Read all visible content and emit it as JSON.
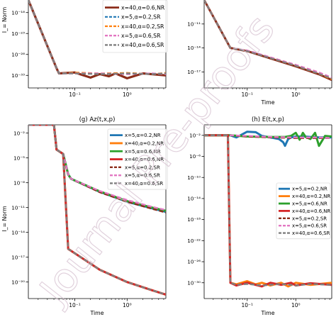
{
  "watermark": "Journal Pre-proofs",
  "colors": {
    "c_red": "#d62728",
    "c_darkred": "#8c2d1a",
    "c_pink": "#e377c2",
    "c_blue": "#1f77b4",
    "c_orange": "#ff7f0e",
    "c_green": "#2ca02c",
    "c_brown": "#8c564b",
    "c_gray": "#7f7f7f",
    "watermark": "#d8c3d2"
  },
  "chart_data": [
    {
      "panel": "e",
      "type": "line",
      "title": "",
      "xlabel": "",
      "ylabel": "I_= Norm",
      "xscale": "log",
      "yscale": "log",
      "xlim": [
        0.013,
        5.5
      ],
      "ylim": [
        1e-36,
        1e-15
      ],
      "xticks": [
        {
          "v": 0.1,
          "label": "10⁻¹"
        },
        {
          "v": 1,
          "label": "10⁰"
        }
      ],
      "yticks": [
        {
          "v": 1e-18,
          "label": "10⁻¹⁸"
        },
        {
          "v": 1e-23,
          "label": "10⁻²³"
        },
        {
          "v": 1e-28,
          "label": "10⁻²⁸"
        },
        {
          "v": 1e-33,
          "label": "10⁻³³"
        }
      ],
      "legend_position": "upper-right",
      "series": [
        {
          "name": "x=40,α=0.6,NR",
          "color": "c_darkred",
          "dash": "solid",
          "width": 3.2,
          "x": [
            0.013,
            0.045,
            0.05,
            0.1,
            0.2,
            0.3,
            0.45,
            0.6,
            1,
            2,
            5.5
          ],
          "y": [
            1e-15,
            5e-32,
            3e-33,
            5e-33,
            3e-34,
            2e-33,
            6e-34,
            3e-33,
            2e-34,
            3e-33,
            1e-33
          ]
        },
        {
          "name": "x=5,α=0.2,SR",
          "color": "c_blue",
          "dash": "dashed",
          "width": 2.2,
          "x": [
            0.013,
            0.045,
            0.05,
            0.1,
            0.3,
            1,
            3,
            5.5
          ],
          "y": [
            1e-15,
            5e-32,
            3e-33,
            4e-33,
            2e-33,
            3e-33,
            2e-33,
            3e-33
          ]
        },
        {
          "name": "x=40,α=0.2,SR",
          "color": "c_orange",
          "dash": "dashed",
          "width": 2.2,
          "x": [
            0.013,
            0.045,
            0.05,
            0.1,
            0.3,
            1,
            3,
            5.5
          ],
          "y": [
            1e-15,
            5e-32,
            3e-33,
            5e-33,
            3e-33,
            4e-33,
            2e-33,
            4e-33
          ]
        },
        {
          "name": "x=5,α=0.6,SR",
          "color": "c_pink",
          "dash": "dashed",
          "width": 2.4,
          "x": [
            0.013,
            0.045,
            0.05,
            0.1,
            0.3,
            1,
            3,
            5.5
          ],
          "y": [
            1e-15,
            5e-32,
            3e-33,
            3e-33,
            3e-33,
            2e-33,
            3e-33,
            2e-33
          ]
        },
        {
          "name": "x=40,α=0.6,SR",
          "color": "c_gray",
          "dash": "dashed",
          "width": 2.4,
          "x": [
            0.013,
            0.045,
            0.05,
            0.1,
            0.3,
            1,
            3,
            5.5
          ],
          "y": [
            1e-15,
            5e-32,
            3e-33,
            3e-33,
            2e-33,
            3e-33,
            2e-33,
            3e-33
          ]
        }
      ]
    },
    {
      "panel": "f",
      "type": "line",
      "title": "",
      "xlabel": "Time",
      "ylabel": "",
      "xscale": "log",
      "yscale": "log",
      "xlim": [
        0.013,
        5.5
      ],
      "ylim": [
        1e-19,
        1e-08
      ],
      "xticks": [
        {
          "v": 0.1,
          "label": "10⁻¹"
        },
        {
          "v": 1,
          "label": "10⁰"
        }
      ],
      "yticks": [
        {
          "v": 1e-11,
          "label": "10⁻¹¹"
        },
        {
          "v": 1e-14,
          "label": "10⁻¹⁴"
        },
        {
          "v": 1e-17,
          "label": "10⁻¹⁷"
        }
      ],
      "legend_position": "none",
      "series": [
        {
          "name": "",
          "color": "c_darkred",
          "dash": "solid",
          "width": 3,
          "x": [
            0.013,
            0.045,
            0.1,
            0.3,
            1,
            3,
            5.5
          ],
          "y": [
            1e-08,
            1e-14,
            4e-15,
            5e-16,
            5e-17,
            5e-18,
            1e-18
          ]
        },
        {
          "name": "",
          "color": "c_orange",
          "dash": "dashed",
          "width": 2.2,
          "x": [
            0.013,
            0.045,
            0.1,
            0.3,
            1,
            3,
            5.5
          ],
          "y": [
            1e-08,
            1e-14,
            4.5e-15,
            6e-16,
            6e-17,
            6e-18,
            1.2e-18
          ]
        },
        {
          "name": "",
          "color": "c_pink",
          "dash": "dashed",
          "width": 2.2,
          "x": [
            0.013,
            0.045,
            0.1,
            0.3,
            1,
            3,
            5.5
          ],
          "y": [
            1e-08,
            1e-14,
            5e-15,
            7e-16,
            8e-17,
            9e-18,
            2e-18
          ]
        },
        {
          "name": "",
          "color": "c_gray",
          "dash": "dashed",
          "width": 2.2,
          "x": [
            0.013,
            0.045,
            0.1,
            0.3,
            1,
            3,
            5.5
          ],
          "y": [
            1e-08,
            1e-14,
            4e-15,
            5.5e-16,
            6e-17,
            6e-18,
            1.5e-18
          ]
        }
      ]
    },
    {
      "panel": "g",
      "type": "line",
      "title": "(g) Az(t,x,p)",
      "xlabel": "Time",
      "ylabel": "I_= Norm",
      "xscale": "log",
      "yscale": "log",
      "xlim": [
        0.013,
        5.5
      ],
      "ylim": [
        1e-22,
        0.1
      ],
      "xticks": [
        {
          "v": 0.1,
          "label": "10⁻¹"
        },
        {
          "v": 1,
          "label": "10⁰"
        }
      ],
      "yticks": [
        {
          "v": 0.01,
          "label": "10⁻²"
        },
        {
          "v": 1e-05,
          "label": "10⁻⁵"
        },
        {
          "v": 1e-08,
          "label": "10⁻⁸"
        },
        {
          "v": 1e-11,
          "label": "10⁻¹¹"
        },
        {
          "v": 1e-14,
          "label": "10⁻¹⁴"
        },
        {
          "v": 1e-17,
          "label": "10⁻¹⁷"
        },
        {
          "v": 1e-20,
          "label": "10⁻²⁰"
        }
      ],
      "legend_position": "upper-right",
      "series": [
        {
          "name": "x=5,α=0.2,NR",
          "color": "c_blue",
          "dash": "solid",
          "width": 3,
          "x": [
            0.013,
            0.04,
            0.045,
            0.06,
            0.075,
            0.085,
            0.3,
            1,
            3,
            5.5
          ],
          "y": [
            0.1,
            0.1,
            0.0001,
            3e-05,
            1e-07,
            3e-08,
            8e-10,
            5e-11,
            8e-12,
            3e-12
          ]
        },
        {
          "name": "x=40,α=0.2,NR",
          "color": "c_orange",
          "dash": "solid",
          "width": 3,
          "x": [
            0.013,
            0.04,
            0.045,
            0.06,
            0.075,
            0.085,
            0.3,
            1,
            3,
            5.5
          ],
          "y": [
            0.1,
            0.1,
            0.0001,
            3e-05,
            1e-16,
            6e-17,
            3e-19,
            1e-20,
            1e-21,
            3e-22
          ]
        },
        {
          "name": "x=5,α=0.6,NR",
          "color": "c_green",
          "dash": "solid",
          "width": 3,
          "x": [
            0.013,
            0.04,
            0.045,
            0.06,
            0.075,
            0.085,
            0.3,
            1,
            3,
            5.5
          ],
          "y": [
            0.1,
            0.1,
            0.0001,
            3e-05,
            1e-07,
            3e-08,
            9e-10,
            6e-11,
            1e-11,
            4e-12
          ]
        },
        {
          "name": "x=40,α=0.6,NR",
          "color": "c_red",
          "dash": "solid",
          "width": 3,
          "x": [
            0.013,
            0.04,
            0.045,
            0.06,
            0.075,
            0.085,
            0.3,
            1,
            3,
            5.5
          ],
          "y": [
            0.1,
            0.1,
            0.0001,
            3e-05,
            1e-16,
            6e-17,
            3e-19,
            1e-20,
            1e-21,
            3e-22
          ]
        },
        {
          "name": "x=5,α=0.2,SR",
          "color": "c_darkred",
          "dash": "dashed",
          "width": 2.4,
          "x": [
            0.013,
            0.04,
            0.045,
            0.06,
            0.075,
            0.085,
            0.3,
            1,
            3,
            5.5
          ],
          "y": [
            0.1,
            0.1,
            0.0001,
            3e-05,
            1e-07,
            3e-08,
            7e-10,
            5e-11,
            7e-12,
            2.5e-12
          ]
        },
        {
          "name": "x=5,α=0.6,SR",
          "color": "c_pink",
          "dash": "dashed",
          "width": 2.4,
          "x": [
            0.013,
            0.04,
            0.045,
            0.06,
            0.075,
            0.085,
            0.3,
            1,
            3,
            5.5
          ],
          "y": [
            0.1,
            0.1,
            0.0001,
            3e-05,
            1e-07,
            3e-08,
            1e-09,
            8e-11,
            1.2e-11,
            5e-12
          ]
        },
        {
          "name": "x=40,α=0.6,SR",
          "color": "c_gray",
          "dash": "dashed",
          "width": 2.4,
          "x": [
            0.013,
            0.04,
            0.045,
            0.06,
            0.075,
            0.085,
            0.3,
            1,
            3,
            5.5
          ],
          "y": [
            0.1,
            0.1,
            0.0001,
            3e-05,
            1e-16,
            6e-17,
            3e-19,
            1e-20,
            1e-21,
            3e-22
          ]
        }
      ]
    },
    {
      "panel": "h",
      "type": "line",
      "title": "(h) E(t,x,p)",
      "xlabel": "Time",
      "ylabel": "",
      "xscale": "log",
      "yscale": "log",
      "xlim": [
        0.013,
        5.5
      ],
      "ylim": [
        1e-33,
        1
      ],
      "xticks": [
        {
          "v": 0.1,
          "label": "10⁻¹"
        },
        {
          "v": 1,
          "label": "10⁰"
        }
      ],
      "yticks": [
        {
          "v": 0.01,
          "label": "10⁻²"
        },
        {
          "v": 1e-06,
          "label": "10⁻⁶"
        },
        {
          "v": 1e-10,
          "label": "10⁻¹⁰"
        },
        {
          "v": 1e-14,
          "label": "10⁻¹⁴"
        },
        {
          "v": 1e-18,
          "label": "10⁻¹⁸"
        },
        {
          "v": 1e-22,
          "label": "10⁻²²"
        },
        {
          "v": 1e-26,
          "label": "10⁻²⁶"
        },
        {
          "v": 1e-30,
          "label": "10⁻³⁰"
        }
      ],
      "legend_position": "center-right",
      "series": [
        {
          "name": "x=5,α=0.2,NR",
          "color": "c_blue",
          "dash": "solid",
          "width": 3,
          "x": [
            0.013,
            0.045,
            0.06,
            0.1,
            0.15,
            0.2,
            0.3,
            0.45,
            0.55,
            0.6,
            0.65,
            0.7,
            0.8,
            1,
            1.5,
            2,
            3,
            5.5
          ],
          "y": [
            0.01,
            0.01,
            0.004,
            0.05,
            0.04,
            0.008,
            0.004,
            0.002,
            0.0005,
            0.0001,
            0.0005,
            0.002,
            0.004,
            0.006,
            0.006,
            0.005,
            0.004,
            0.004
          ]
        },
        {
          "name": "x=40,α=0.2,NR",
          "color": "c_orange",
          "dash": "solid",
          "width": 3,
          "x": [
            0.013,
            0.04,
            0.045,
            0.06,
            0.1,
            0.15,
            0.2,
            0.3,
            0.5,
            0.7,
            1,
            2,
            5.5
          ],
          "y": [
            0.01,
            0.01,
            1e-30,
            5e-31,
            2e-30,
            5e-31,
            1e-30,
            3e-31,
            1e-30,
            2e-31,
            1e-30,
            4e-31,
            1e-30
          ]
        },
        {
          "name": "x=5,α=0.6,NR",
          "color": "c_green",
          "dash": "solid",
          "width": 3,
          "x": [
            0.013,
            0.045,
            0.1,
            0.3,
            0.6,
            0.8,
            1,
            1.2,
            1.4,
            1.6,
            2,
            2.5,
            3,
            4,
            5.5
          ],
          "y": [
            0.01,
            0.01,
            0.006,
            0.005,
            0.005,
            0.008,
            0.03,
            0.0015,
            0.03,
            0.005,
            0.002,
            0.03,
            0.0001,
            0.008,
            0.006
          ]
        },
        {
          "name": "x=40,α=0.6,NR",
          "color": "c_red",
          "dash": "solid",
          "width": 3,
          "x": [
            0.013,
            0.04,
            0.045,
            0.06,
            0.1,
            0.2,
            0.3,
            0.5,
            0.8,
            1,
            2,
            5.5
          ],
          "y": [
            0.01,
            0.01,
            1e-30,
            3e-31,
            1e-30,
            2e-31,
            1e-30,
            4e-31,
            1e-30,
            3e-31,
            8e-31,
            4e-31
          ]
        },
        {
          "name": "x=5,α=0.2,SR",
          "color": "c_darkred",
          "dash": "dashed",
          "width": 2.4,
          "x": [
            0.013,
            0.045,
            0.1,
            0.3,
            1,
            3,
            5.5
          ],
          "y": [
            0.01,
            0.01,
            0.006,
            0.004,
            0.003,
            0.003,
            0.003
          ]
        },
        {
          "name": "x=5,α=0.6,SR",
          "color": "c_pink",
          "dash": "dashed",
          "width": 2.4,
          "x": [
            0.013,
            0.045,
            0.1,
            0.3,
            1,
            3,
            5.5
          ],
          "y": [
            0.01,
            0.01,
            0.008,
            0.005,
            0.004,
            0.004,
            0.003
          ]
        },
        {
          "name": "x=40,α=0.6,SR",
          "color": "c_gray",
          "dash": "dashed",
          "width": 2.4,
          "x": [
            0.013,
            0.04,
            0.045,
            0.06,
            0.1,
            0.2,
            0.5,
            1,
            2,
            5.5
          ],
          "y": [
            0.01,
            0.01,
            1e-30,
            4e-31,
            6e-31,
            3e-31,
            6e-31,
            3e-31,
            6e-31,
            4e-31
          ]
        }
      ]
    }
  ]
}
